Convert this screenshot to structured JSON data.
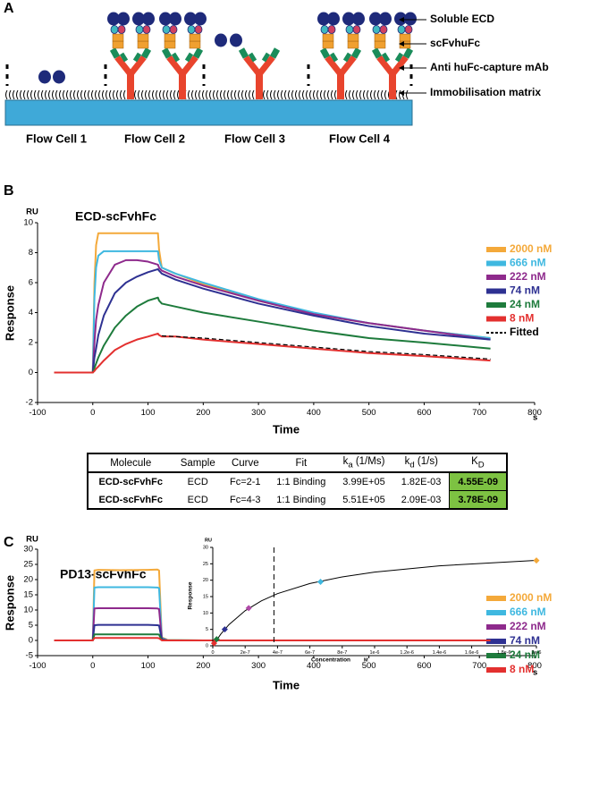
{
  "diagram": {
    "panel_label": "A",
    "labels": [
      "Soluble ECD",
      "scFvhuFc",
      "Anti huFc-capture mAb",
      "Immobilisation matrix"
    ],
    "flow_cells": [
      "Flow Cell 1",
      "Flow Cell 2",
      "Flow Cell 3",
      "Flow Cell 4"
    ]
  },
  "chart_data": [
    {
      "type": "line",
      "panel_label": "B",
      "title": "ECD-scFvhFc",
      "y_unit": "RU",
      "y_label": "Response",
      "x_label": "Time",
      "x_unit": "s",
      "x": [
        -70,
        -10,
        0,
        3,
        6,
        10,
        20,
        40,
        60,
        80,
        100,
        118,
        120,
        125,
        150,
        200,
        300,
        400,
        500,
        600,
        720
      ],
      "xlim": [
        -100,
        800
      ],
      "xticks": [
        -100,
        0,
        100,
        200,
        300,
        400,
        500,
        600,
        700,
        800
      ],
      "ylim": [
        -2,
        10
      ],
      "yticks": [
        -2,
        0,
        2,
        4,
        6,
        8,
        10
      ],
      "legend": "right",
      "series": [
        {
          "name": "2000 nM",
          "color": "#f4a93a",
          "values": [
            0,
            0,
            0,
            6,
            8.5,
            9.3,
            9.3,
            9.3,
            9.3,
            9.3,
            9.3,
            9.3,
            8.2,
            7.0,
            6.6,
            5.9,
            4.8,
            3.9,
            3.3,
            2.8,
            2.3
          ]
        },
        {
          "name": "666 nM",
          "color": "#3fb8e0",
          "values": [
            0,
            0,
            0,
            5,
            7,
            7.8,
            8.1,
            8.1,
            8.1,
            8.1,
            8.1,
            8.1,
            7.5,
            7.0,
            6.6,
            6.0,
            4.9,
            4.0,
            3.3,
            2.8,
            2.3
          ]
        },
        {
          "name": "222 nM",
          "color": "#8e2a8c",
          "values": [
            0,
            0,
            0,
            2,
            3.5,
            4.5,
            6,
            7.2,
            7.5,
            7.5,
            7.4,
            7.2,
            7.0,
            6.8,
            6.4,
            5.8,
            4.8,
            3.9,
            3.3,
            2.8,
            2.2
          ]
        },
        {
          "name": "74 nM",
          "color": "#2e3192",
          "values": [
            0,
            0,
            0,
            1,
            1.6,
            2.5,
            3.8,
            5.3,
            6.0,
            6.4,
            6.7,
            6.9,
            6.8,
            6.6,
            6.2,
            5.6,
            4.6,
            3.8,
            3.1,
            2.6,
            2.2
          ]
        },
        {
          "name": "24 nM",
          "color": "#1e7b3c",
          "values": [
            0,
            0,
            0,
            0.3,
            0.6,
            1.0,
            1.8,
            3.0,
            3.8,
            4.4,
            4.8,
            5.0,
            4.8,
            4.6,
            4.4,
            4.0,
            3.4,
            2.8,
            2.3,
            2.0,
            1.6
          ]
        },
        {
          "name": "8 nM",
          "color": "#e3302f",
          "values": [
            0,
            0,
            0,
            0.1,
            0.25,
            0.4,
            0.8,
            1.5,
            1.9,
            2.2,
            2.4,
            2.6,
            2.5,
            2.4,
            2.4,
            2.2,
            1.9,
            1.6,
            1.3,
            1.1,
            0.8
          ]
        },
        {
          "name": "Fitted",
          "color": "#000000",
          "dash": true,
          "values": [
            null,
            null,
            null,
            null,
            null,
            null,
            null,
            null,
            null,
            null,
            null,
            null,
            null,
            2.45,
            2.4,
            2.3,
            2.0,
            1.7,
            1.4,
            1.2,
            0.9
          ]
        }
      ]
    },
    {
      "type": "line",
      "panel_label": "C",
      "title": "PD13-scFvhFc",
      "y_unit": "RU",
      "y_label": "Response",
      "x_label": "Time",
      "x_unit": "s",
      "x": [
        -70,
        -5,
        0,
        3,
        10,
        50,
        100,
        117,
        120,
        125,
        135,
        200,
        720
      ],
      "xlim": [
        -100,
        800
      ],
      "xticks": [
        -100,
        0,
        100,
        200,
        300,
        400,
        500,
        600,
        700,
        800
      ],
      "ylim": [
        -5,
        30
      ],
      "yticks": [
        -5,
        0,
        5,
        10,
        15,
        20,
        25,
        30
      ],
      "legend": "right",
      "series": [
        {
          "name": "2000 nM",
          "color": "#f4a93a",
          "values": [
            0,
            0,
            0,
            23,
            23.2,
            23.1,
            23.2,
            23.3,
            23,
            1.0,
            0.2,
            0,
            0
          ]
        },
        {
          "name": "666 nM",
          "color": "#3fb8e0",
          "values": [
            0,
            0,
            0,
            17.4,
            17.5,
            17.5,
            17.5,
            17.4,
            17.2,
            0.8,
            0.1,
            0,
            0
          ]
        },
        {
          "name": "222 nM",
          "color": "#8e2a8c",
          "values": [
            0,
            0,
            0,
            10.5,
            10.6,
            10.6,
            10.6,
            10.5,
            10.3,
            0.5,
            0,
            0,
            0
          ]
        },
        {
          "name": "74 nM",
          "color": "#2e3192",
          "values": [
            0,
            0,
            0,
            5,
            5.1,
            5.1,
            5.1,
            5,
            4.9,
            0.3,
            0,
            0,
            0
          ]
        },
        {
          "name": "24 nM",
          "color": "#1e7b3c",
          "values": [
            0,
            0,
            0,
            2,
            2,
            2,
            2,
            2,
            1.9,
            0.1,
            0,
            0,
            0
          ]
        },
        {
          "name": "8 nM",
          "color": "#e3302f",
          "values": [
            0,
            0,
            0,
            0.8,
            0.8,
            0.8,
            0.8,
            0.8,
            0.7,
            0,
            0,
            0,
            0
          ]
        }
      ]
    },
    {
      "type": "scatter",
      "y_unit": "RU",
      "y_label": "Response",
      "x_label": "Concentration",
      "x_unit": "M",
      "x": [
        8e-09,
        2.4e-08,
        7.4e-08,
        2.22e-07,
        6.66e-07,
        2e-06
      ],
      "values": [
        0.8,
        2,
        5,
        11.5,
        19.5,
        26
      ],
      "colors": [
        "#e3302f",
        "#1e7b3c",
        "#2e3192",
        "#b04aa8",
        "#3fb8e0",
        "#f4a93a"
      ],
      "fit": {
        "x": [
          0,
          5e-08,
          1e-07,
          2e-07,
          3e-07,
          4e-07,
          6e-07,
          8e-07,
          1e-06,
          1.4e-06,
          2e-06
        ],
        "values": [
          0,
          3.6,
          6.46,
          10.69,
          13.68,
          15.9,
          18.98,
          21.0,
          22.47,
          24.38,
          26.05
        ]
      },
      "reference_line": 3.78e-07,
      "xlim": [
        0,
        2e-06
      ],
      "xticks": [
        0,
        {
          "value": 2e-07,
          "label": "2e-7"
        },
        {
          "value": 4e-07,
          "label": "4e-7"
        },
        {
          "value": 6e-07,
          "label": "6e-7"
        },
        {
          "value": 8e-07,
          "label": "8e-7"
        },
        {
          "value": 1e-06,
          "label": "1e-6"
        },
        {
          "value": 1.2e-06,
          "label": "1.2e-6"
        },
        {
          "value": 1.4e-06,
          "label": "1.4e-6"
        },
        {
          "value": 1.6e-06,
          "label": "1.6e-6"
        },
        {
          "value": 1.8e-06,
          "label": "1.8e-6"
        },
        {
          "value": 2e-06,
          "label": "2e-6"
        }
      ],
      "ylim": [
        0,
        30
      ],
      "yticks": [
        0,
        5,
        10,
        15,
        20,
        25,
        30
      ]
    }
  ],
  "table": {
    "header": [
      "Molecule",
      "Sample",
      "Curve",
      "Fit",
      {
        "text": "k",
        "sub": "a",
        "unit": " (1/Ms)"
      },
      {
        "text": "k",
        "sub": "d",
        "unit": " (1/s)"
      },
      {
        "text": "K",
        "sub": "D"
      }
    ],
    "rows": [
      [
        "ECD-scFvhFc",
        "ECD",
        "Fc=2-1",
        "1:1 Binding",
        "3.99E+05",
        "1.82E-03",
        "4.55E-09"
      ],
      [
        "ECD-scFvhFc",
        "ECD",
        "Fc=4-3",
        "1:1 Binding",
        "5.51E+05",
        "2.09E-03",
        "3.78E-09"
      ]
    ]
  }
}
